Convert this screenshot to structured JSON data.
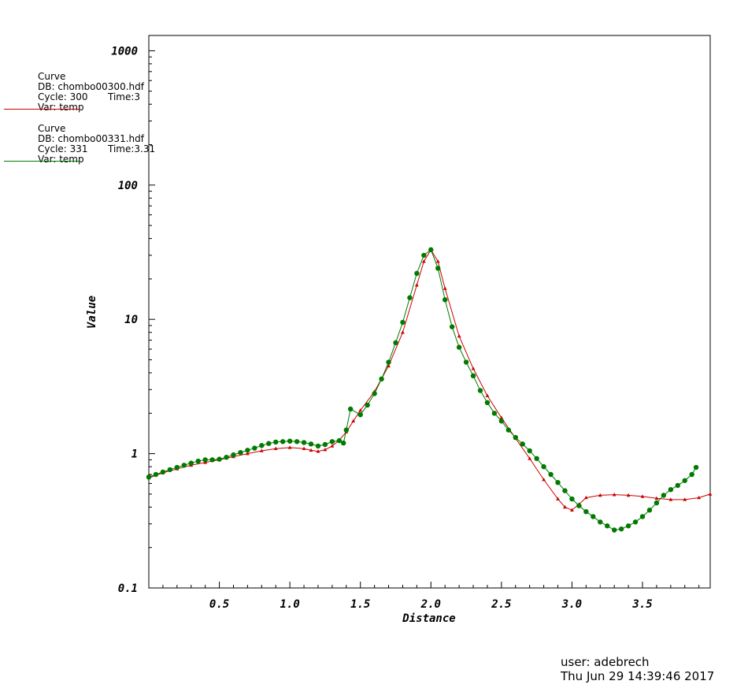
{
  "legend": [
    {
      "title": "Curve",
      "db": "DB: chombo00300.hdf",
      "cycle": "Cycle: 300",
      "time": "Time:3",
      "var": "Var: temp",
      "color": "#cc0000"
    },
    {
      "title": "Curve",
      "db": "DB: chombo00331.hdf",
      "cycle": "Cycle: 331",
      "time": "Time:3.31",
      "var": "Var: temp",
      "color": "#007a00"
    }
  ],
  "footer": {
    "user": "user: adebrech",
    "date": "Thu Jun 29 14:39:46 2017"
  },
  "chart_data": {
    "type": "line",
    "xlabel": "Distance",
    "ylabel": "Value",
    "xlim": [
      0,
      3.98
    ],
    "ylim": [
      0.1,
      1300
    ],
    "yscale": "log",
    "xticks": [
      0.5,
      1.0,
      1.5,
      2.0,
      2.5,
      3.0,
      3.5
    ],
    "xtick_labels": [
      "0.5",
      "1.0",
      "1.5",
      "2.0",
      "2.5",
      "3.0",
      "3.5"
    ],
    "yticks": [
      0.1,
      1,
      10,
      100,
      1000
    ],
    "ytick_labels": [
      "0.1",
      "1",
      "10",
      "100",
      "1000"
    ],
    "grid": false,
    "series": [
      {
        "name": "chombo00300.hdf",
        "color": "#cc0000",
        "marker": "triangle",
        "x": [
          0.0,
          0.1,
          0.2,
          0.3,
          0.4,
          0.5,
          0.6,
          0.7,
          0.8,
          0.9,
          1.0,
          1.1,
          1.15,
          1.2,
          1.25,
          1.3,
          1.35,
          1.4,
          1.45,
          1.5,
          1.6,
          1.7,
          1.8,
          1.9,
          1.95,
          2.0,
          2.05,
          2.1,
          2.2,
          2.3,
          2.4,
          2.5,
          2.6,
          2.7,
          2.8,
          2.9,
          2.95,
          3.0,
          3.05,
          3.1,
          3.2,
          3.3,
          3.4,
          3.5,
          3.6,
          3.7,
          3.8,
          3.9,
          3.98
        ],
        "y": [
          0.66,
          0.72,
          0.77,
          0.82,
          0.86,
          0.9,
          0.95,
          1.0,
          1.05,
          1.09,
          1.11,
          1.09,
          1.06,
          1.04,
          1.07,
          1.14,
          1.26,
          1.45,
          1.75,
          2.1,
          2.9,
          4.5,
          8.0,
          18.0,
          27.0,
          33.0,
          27.0,
          17.0,
          7.5,
          4.3,
          2.7,
          1.85,
          1.3,
          0.92,
          0.64,
          0.46,
          0.4,
          0.38,
          0.42,
          0.47,
          0.49,
          0.495,
          0.49,
          0.48,
          0.465,
          0.455,
          0.455,
          0.47,
          0.5
        ]
      },
      {
        "name": "chombo00331.hdf",
        "color": "#007a00",
        "marker": "circle",
        "x": [
          0.0,
          0.05,
          0.1,
          0.15,
          0.2,
          0.25,
          0.3,
          0.35,
          0.4,
          0.45,
          0.5,
          0.55,
          0.6,
          0.65,
          0.7,
          0.75,
          0.8,
          0.85,
          0.9,
          0.95,
          1.0,
          1.05,
          1.1,
          1.15,
          1.2,
          1.25,
          1.3,
          1.35,
          1.38,
          1.4,
          1.43,
          1.5,
          1.55,
          1.6,
          1.65,
          1.7,
          1.75,
          1.8,
          1.85,
          1.9,
          1.95,
          2.0,
          2.05,
          2.1,
          2.15,
          2.2,
          2.25,
          2.3,
          2.35,
          2.4,
          2.45,
          2.5,
          2.55,
          2.6,
          2.65,
          2.7,
          2.75,
          2.8,
          2.85,
          2.9,
          2.95,
          3.0,
          3.05,
          3.1,
          3.15,
          3.2,
          3.25,
          3.3,
          3.35,
          3.4,
          3.45,
          3.5,
          3.55,
          3.6,
          3.65,
          3.7,
          3.75,
          3.8,
          3.85,
          3.88
        ],
        "y": [
          0.67,
          0.7,
          0.73,
          0.76,
          0.79,
          0.82,
          0.85,
          0.88,
          0.9,
          0.9,
          0.91,
          0.94,
          0.98,
          1.02,
          1.06,
          1.1,
          1.15,
          1.19,
          1.22,
          1.23,
          1.24,
          1.23,
          1.21,
          1.18,
          1.14,
          1.17,
          1.23,
          1.25,
          1.2,
          1.5,
          2.15,
          1.95,
          2.3,
          2.8,
          3.6,
          4.8,
          6.7,
          9.5,
          14.5,
          22.0,
          30.0,
          33.0,
          24.0,
          14.0,
          8.8,
          6.2,
          4.8,
          3.8,
          2.95,
          2.4,
          2.0,
          1.75,
          1.5,
          1.32,
          1.18,
          1.05,
          0.92,
          0.8,
          0.7,
          0.61,
          0.53,
          0.46,
          0.41,
          0.37,
          0.34,
          0.31,
          0.29,
          0.27,
          0.275,
          0.29,
          0.31,
          0.34,
          0.38,
          0.43,
          0.49,
          0.54,
          0.58,
          0.63,
          0.7,
          0.79
        ]
      }
    ]
  }
}
